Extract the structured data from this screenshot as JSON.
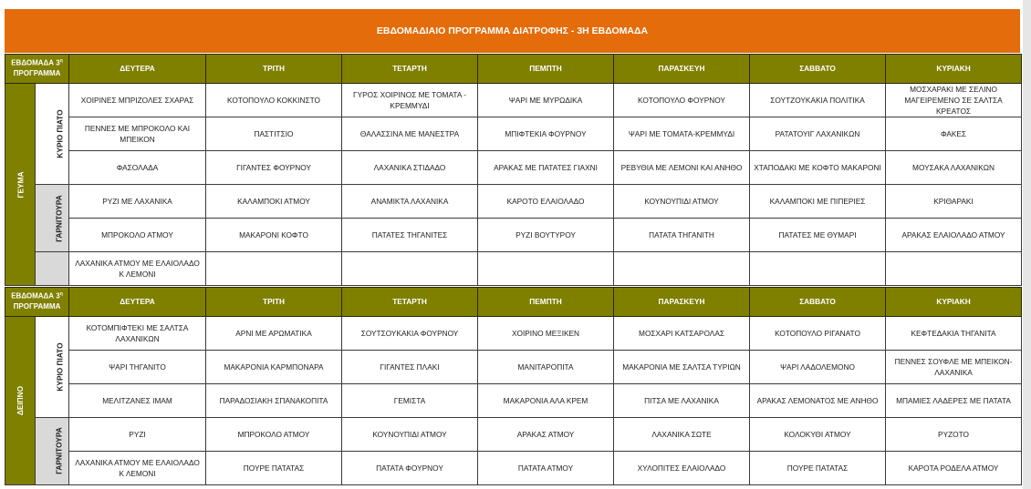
{
  "title": "ΕΒΔΟΜΑΔΙΑΙΟ ΠΡΟΓΡΑΜΜΑ ΔΙΑΤΡΟΦΗΣ - 3Η ΕΒΔΟΜΑΔΑ",
  "colors": {
    "title_bg": "#e46c0a",
    "header_bg": "#7f7f00",
    "side_category_bg": "#d9d9d9"
  },
  "corner": {
    "line1": "ΕΒΔΟΜΑΔΑ 3",
    "sup": "η",
    "line2": "ΠΡΟΓΡΑΜΜΑ"
  },
  "days": [
    "ΔΕΥΤΕΡΑ",
    "ΤΡΙΤΗ",
    "ΤΕΤΑΡΤΗ",
    "ΠΕΜΠΤΗ",
    "ΠΑΡΑΣΚΕΥΗ",
    "ΣΑΒΒΑΤΟ",
    "ΚΥΡΙΑΚΗ"
  ],
  "sections": [
    {
      "meal": "ΓΕΥΜΑ",
      "groups": [
        {
          "category": "ΚΥΡΙΟ ΠΙΑΤΟ",
          "type": "main",
          "rows": [
            [
              "ΧΟΙΡΙΝΕΣ ΜΠΡΙΖΟΛΕΣ   ΣΧΑΡΑΣ",
              "ΚΟΤΟΠΟΥΛΟ ΚΟΚΚΙΝΣΤΟ",
              "ΓΥΡΟΣ ΧΟΙΡΙΝΟΣ ΜΕ ΤΟΜΑΤΑ - ΚΡΕΜΜΥΔΙ",
              "ΨΑΡΙ ΜΕ ΜΥΡΩΔΙΚΑ",
              "ΚΟΤΟΠΟΥΛΟ ΦΟΥΡΝΟΥ",
              "ΣΟΥΤΖΟΥΚΑΚΙΑ ΠΟΛΙΤΙΚΑ",
              "ΜΟΣΧΑΡΑΚΙ ΜΕ ΣΕΛΙΝΟ ΜΑΓΕΙΡΕΜΕΝΟ ΣΕ ΣΑΛΤΣΑ ΚΡΕΑΤΟΣ"
            ],
            [
              "ΠΕΝΝΕΣ ΜΕ ΜΠΡΟΚΟΛΟ ΚΑΙ ΜΠΕΙΚΟΝ",
              "ΠΑΣΤΙΤΣΙΟ",
              "ΘΑΛΑΣΣΙΝΑ ΜΕ ΜΑΝΕΣΤΡΑ",
              "ΜΠΙΦΤΕΚΙΑ  ΦΟΥΡΝΟΥ",
              "ΨΑΡΙ ΜΕ ΤΟΜΑΤΑ-ΚΡΕΜΜΥΔΙ",
              "ΡΑΤΑΤΟΥΙΓ ΛΑΧΑΝΙΚΩΝ",
              "ΦΑΚΕΣ"
            ],
            [
              "ΦΑΣΟΛΑΔΑ",
              "ΓΙΓΑΝΤΕΣ ΦΟΥΡΝΟΥ",
              "ΛΑΧΑΝΙΚΑ ΣΤΙΔΑΔΟ",
              "ΑΡΑΚΑΣ ΜΕ ΠΑΤΑΤΕΣ ΓΙΑΧΝΙ",
              "ΡΕΒΥΘΙΑ ΜΕ ΛΕΜΟΝΙ ΚΑΙ ΑΝΗΘΟ",
              "ΧΤΑΠΟΔΑΚΙ ΜΕ ΚΟΦΤΟ ΜΑΚΑΡΟΝΙ",
              "ΜΟΥΣΑΚΑ ΛΑΧΑΝΙΚΩΝ"
            ]
          ]
        },
        {
          "category": "ΓΑΡΝΙΤΟΥΡΑ",
          "type": "side",
          "rows": [
            [
              "ΡΥΖΙ ΜΕ ΛΑΧΑΝΙΚΑ",
              "ΚΑΛΑΜΠΟΚΙ ΑΤΜΟΥ",
              "ΑΝΑΜΙΚΤΑ ΛΑΧΑΝΙΚΑ",
              "ΚΑΡΟΤΟ ΕΛΑΙΟΛΑΔΟ",
              "ΚΟΥΝΟΥΠΙΔΙ ΑΤΜΟΥ",
              "ΚΑΛΑΜΠΟΚΙ ΜΕ ΠΙΠΕΡΙΕΣ",
              "ΚΡΙΘΑΡΑΚΙ"
            ],
            [
              "ΜΠΡΟΚΟΛΟ ΑΤΜΟΥ",
              "ΜΑΚΑΡΟΝΙ ΚΟΦΤΟ",
              "ΠΑΤΑΤΕΣ ΤΗΓΑΝΙΤΕΣ",
              "ΡΥΖΙ ΒΟΥΤΥΡΟΥ",
              "ΠΑΤΑΤΑ  ΤΗΓΑΝΙΤΗ",
              "ΠΑΤΑΤΕΣ ΜΕ ΘΥΜΑΡΙ",
              "ΑΡΑΚΑΣ ΕΛΑΙΟΛΑΔΟ   ΑΤΜΟΥ"
            ]
          ]
        },
        {
          "category": "",
          "type": "side",
          "rows": [
            [
              "ΛΑΧΑΝΙΚΑ ΑΤΜΟΥ ΜΕ ΕΛΑΙΟΛΑΔΟ Κ ΛΕΜΟΝΙ",
              "",
              "",
              "",
              "",
              "",
              ""
            ]
          ]
        }
      ]
    },
    {
      "meal": "ΔΕΙΠΝΟ",
      "groups": [
        {
          "category": "ΚΥΡΙΟ ΠΙΑΤΟ",
          "type": "main",
          "rows": [
            [
              "ΚΟΤΟΜΠΙΦΤΕΚΙ ΜΕ ΣΑΛΤΣΑ ΛΑΧΑΝΙΚΩΝ",
              "ΑΡΝΙ  ΜΕ ΑΡΩΜΑΤΙΚΑ",
              "ΣΟΥΤΣΟΥΚΑΚΙΑ ΦΟΥΡΝΟΥ",
              "ΧΟΙΡΙΝΟ ΜΕΞΙΚΕΝ",
              "ΜΟΣΧΑΡΙ ΚΑΤΣΑΡΟΛΑΣ",
              "ΚΟΤΟΠΟΥΛΟ ΡΙΓΑΝΑΤΟ",
              "ΚΕΦΤΕΔΑΚΙΑ ΤΗΓΑΝΙΤΑ"
            ],
            [
              "ΨΑΡΙ ΤΗΓΑΝΙΤΟ",
              "ΜΑΚΑΡΟΝΙΑ ΚΑΡΜΠΟΝΑΡΑ",
              "ΓΙΓΑΝΤΕΣ ΠΛΑΚΙ",
              "ΜΑΝΙΤΑΡΟΠΙΤΑ",
              "ΜΑΚΑΡΟΝΙΑ ΜΕ ΣΑΛΤΣΑ ΤΥΡΙΩΝ",
              "ΨΑΡΙ ΛΑΔΟΛΕΜΟΝΟ",
              "ΠΕΝΝΕΣ ΣΟΥΦΛΕ ΜΕ ΜΠΕΙΚΟΝ-ΛΑΧΑΝΙΚΑ"
            ],
            [
              "ΜΕΛΙΤΖΑΝΕΣ ΙΜΑΜ",
              "ΠΑΡΑΔΟΣΙΑΚΗ ΣΠΑΝΑΚΟΠΙΤΑ",
              "ΓΕΜΙΣΤΑ",
              "ΜΑΚΑΡΟΝΙΑ ΑΛΑ ΚΡΕΜ",
              "ΠΙΤΣΑ ΜΕ ΛΑΧΑΝΙΚΑ",
              "ΑΡΑΚΑΣ ΛΕΜΟΝΑΤΟΣ ΜΕ ΑΝΗΘΟ",
              "ΜΠΑΜΙΕΣ ΛΑΔΕΡΕΣ ΜΕ ΠΑΤΑΤΑ"
            ]
          ]
        },
        {
          "category": "ΓΑΡΝΙΤΟΥΡΑ",
          "type": "side",
          "rows": [
            [
              "ΡΥΖΙ",
              "ΜΠΡΟΚΟΛΟ ΑΤΜΟΥ",
              "ΚΟΥΝΟΥΠΙΔΙ ΑΤΜΟΥ",
              "ΑΡΑΚΑΣ ΑΤΜΟΥ",
              "ΛΑΧΑΝΙΚΑ ΣΩΤΕ",
              "ΚΟΛΟΚΥΘΙ ΑΤΜΟΥ",
              "ΡΥΖΟΤΟ"
            ],
            [
              "ΛΑΧΑΝΙΚΑ ΑΤΜΟΥ ΜΕ ΕΛΑΙΟΛΑΔΟ Κ ΛΕΜΟΝΙ",
              "ΠΟΥΡΕ ΠΑΤΑΤΑΣ",
              "ΠΑΤΑΤΑ ΦΟΥΡΝΟΥ",
              "ΠΑΤΑΤΑ ΑΤΜΟΥ",
              "ΧΥΛΟΠΙΤΕΣ ΕΛΑΙΟΛΑΔΟ",
              "ΠΟΥΡΕ ΠΑΤΑΤΑΣ",
              "ΚΑΡΟΤΑ ΡΟΔΕΛΑ ΑΤΜΟΥ"
            ]
          ]
        }
      ]
    }
  ]
}
